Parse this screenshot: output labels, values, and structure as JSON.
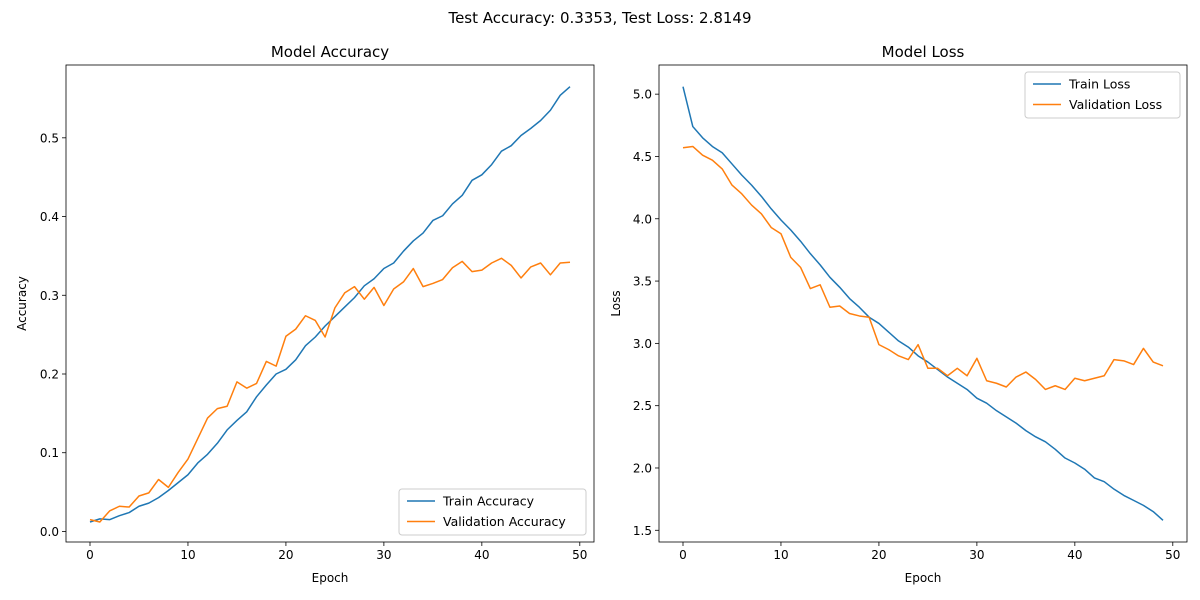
{
  "figure": {
    "suptitle": "Test Accuracy: 0.3353, Test Loss: 2.8149"
  },
  "chart_data": [
    {
      "type": "line",
      "title": "Model Accuracy",
      "xlabel": "Epoch",
      "ylabel": "Accuracy",
      "xlim": [
        -2.45,
        51.45
      ],
      "ylim": [
        -0.0134,
        0.5925
      ],
      "xticks": [
        "0",
        "10",
        "20",
        "30",
        "40",
        "50"
      ],
      "yticks": [
        "0.0",
        "0.1",
        "0.2",
        "0.3",
        "0.4",
        "0.5"
      ],
      "legend_position": "lower-right",
      "grid": false,
      "x": [
        0,
        1,
        2,
        3,
        4,
        5,
        6,
        7,
        8,
        9,
        10,
        11,
        12,
        13,
        14,
        15,
        16,
        17,
        18,
        19,
        20,
        21,
        22,
        23,
        24,
        25,
        26,
        27,
        28,
        29,
        30,
        31,
        32,
        33,
        34,
        35,
        36,
        37,
        38,
        39,
        40,
        41,
        42,
        43,
        44,
        45,
        46,
        47,
        48,
        49
      ],
      "series": [
        {
          "name": "Train Accuracy",
          "color": "#1f77b4",
          "values": [
            0.012,
            0.016,
            0.015,
            0.02,
            0.024,
            0.032,
            0.036,
            0.043,
            0.052,
            0.062,
            0.072,
            0.087,
            0.098,
            0.112,
            0.129,
            0.141,
            0.152,
            0.171,
            0.186,
            0.2,
            0.206,
            0.218,
            0.236,
            0.247,
            0.261,
            0.273,
            0.285,
            0.297,
            0.312,
            0.321,
            0.334,
            0.341,
            0.356,
            0.369,
            0.379,
            0.395,
            0.401,
            0.416,
            0.427,
            0.446,
            0.453,
            0.466,
            0.483,
            0.49,
            0.503,
            0.512,
            0.522,
            0.535,
            0.554,
            0.565
          ]
        },
        {
          "name": "Validation Accuracy",
          "color": "#ff7f0e",
          "values": [
            0.015,
            0.012,
            0.026,
            0.032,
            0.031,
            0.045,
            0.049,
            0.066,
            0.056,
            0.075,
            0.092,
            0.118,
            0.144,
            0.156,
            0.159,
            0.19,
            0.182,
            0.188,
            0.216,
            0.21,
            0.248,
            0.257,
            0.274,
            0.268,
            0.247,
            0.284,
            0.303,
            0.311,
            0.295,
            0.31,
            0.287,
            0.308,
            0.317,
            0.334,
            0.311,
            0.315,
            0.32,
            0.335,
            0.343,
            0.33,
            0.332,
            0.341,
            0.347,
            0.338,
            0.322,
            0.336,
            0.341,
            0.326,
            0.341,
            0.342
          ]
        }
      ]
    },
    {
      "type": "line",
      "title": "Model Loss",
      "xlabel": "Epoch",
      "ylabel": "Loss",
      "xlim": [
        -2.45,
        51.45
      ],
      "ylim": [
        1.406,
        5.234
      ],
      "xticks": [
        "0",
        "10",
        "20",
        "30",
        "40",
        "50"
      ],
      "yticks": [
        "1.5",
        "2.0",
        "2.5",
        "3.0",
        "3.5",
        "4.0",
        "4.5",
        "5.0"
      ],
      "legend_position": "upper-right",
      "grid": false,
      "x": [
        0,
        1,
        2,
        3,
        4,
        5,
        6,
        7,
        8,
        9,
        10,
        11,
        12,
        13,
        14,
        15,
        16,
        17,
        18,
        19,
        20,
        21,
        22,
        23,
        24,
        25,
        26,
        27,
        28,
        29,
        30,
        31,
        32,
        33,
        34,
        35,
        36,
        37,
        38,
        39,
        40,
        41,
        42,
        43,
        44,
        45,
        46,
        47,
        48,
        49
      ],
      "series": [
        {
          "name": "Train Loss",
          "color": "#1f77b4",
          "values": [
            5.06,
            4.74,
            4.65,
            4.58,
            4.53,
            4.44,
            4.35,
            4.27,
            4.18,
            4.08,
            3.99,
            3.91,
            3.82,
            3.72,
            3.63,
            3.53,
            3.45,
            3.36,
            3.29,
            3.21,
            3.16,
            3.09,
            3.02,
            2.97,
            2.9,
            2.85,
            2.79,
            2.73,
            2.68,
            2.63,
            2.56,
            2.52,
            2.46,
            2.41,
            2.36,
            2.3,
            2.25,
            2.21,
            2.15,
            2.08,
            2.04,
            1.99,
            1.92,
            1.89,
            1.83,
            1.78,
            1.74,
            1.7,
            1.65,
            1.58
          ]
        },
        {
          "name": "Validation Loss",
          "color": "#ff7f0e",
          "values": [
            4.57,
            4.58,
            4.51,
            4.47,
            4.4,
            4.27,
            4.2,
            4.11,
            4.04,
            3.93,
            3.88,
            3.69,
            3.61,
            3.44,
            3.47,
            3.29,
            3.3,
            3.24,
            3.22,
            3.21,
            2.99,
            2.95,
            2.9,
            2.87,
            2.99,
            2.8,
            2.8,
            2.74,
            2.8,
            2.74,
            2.88,
            2.7,
            2.68,
            2.65,
            2.73,
            2.77,
            2.71,
            2.63,
            2.66,
            2.63,
            2.72,
            2.7,
            2.72,
            2.74,
            2.87,
            2.86,
            2.83,
            2.96,
            2.85,
            2.82
          ]
        }
      ]
    }
  ]
}
